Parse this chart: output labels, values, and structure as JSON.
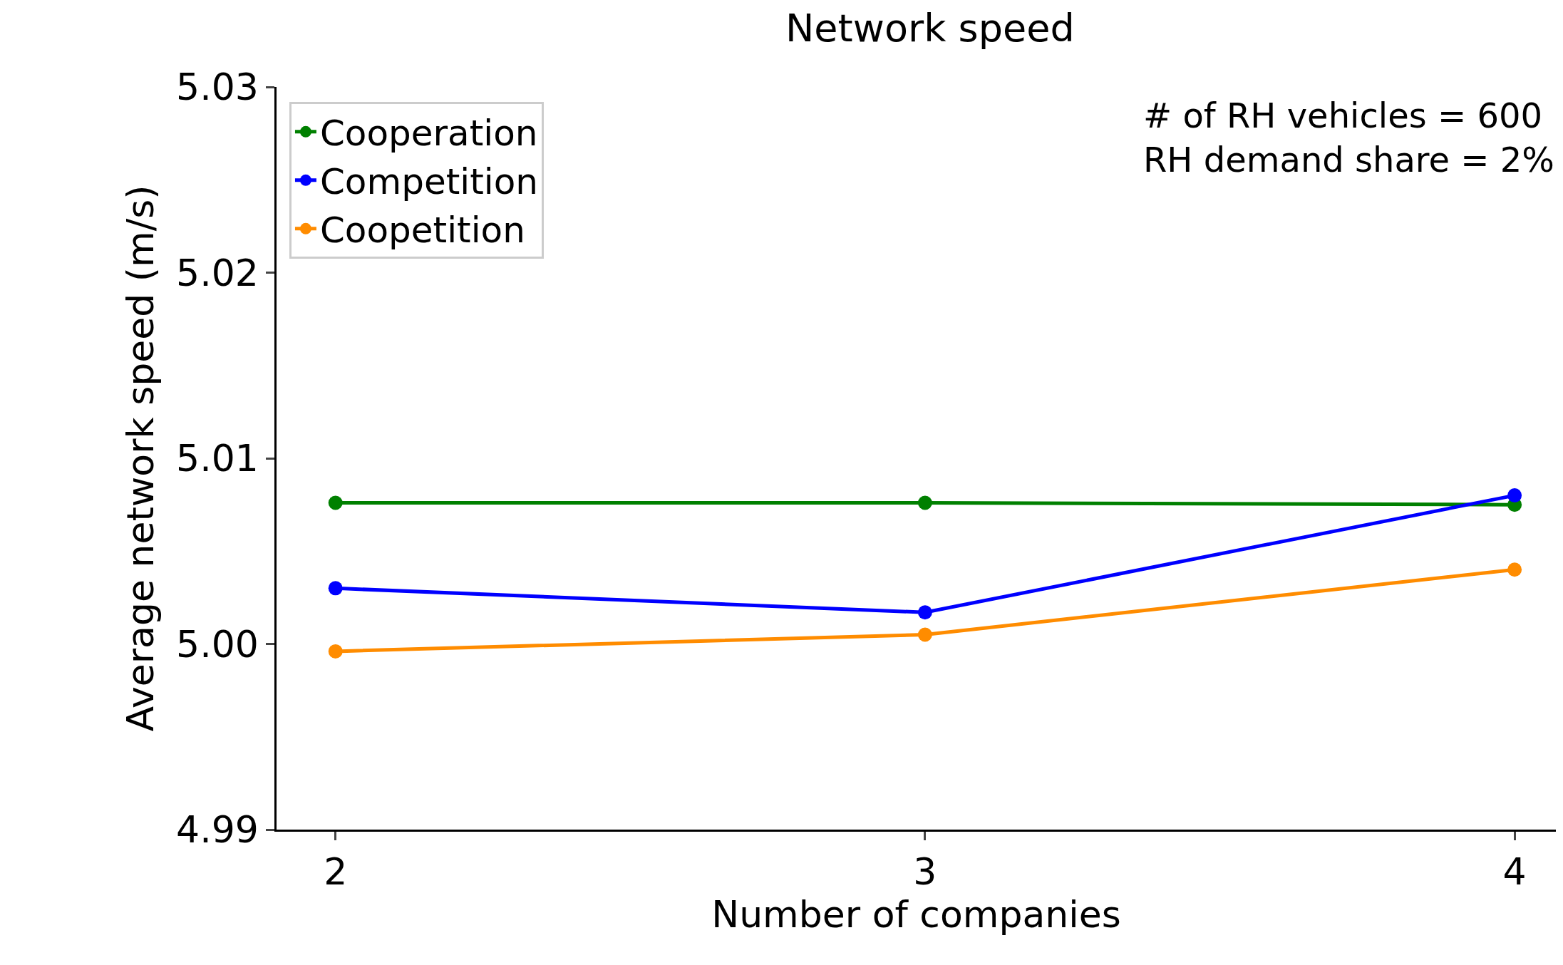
{
  "chart_data": {
    "type": "line",
    "title": "Network speed",
    "xlabel": "Number of companies",
    "ylabel": "Average network speed (m/s)",
    "x": [
      2,
      3,
      4
    ],
    "series": [
      {
        "name": "Cooperation",
        "color": "#008000",
        "values": [
          5.0076,
          5.0076,
          5.0075
        ]
      },
      {
        "name": "Competition",
        "color": "#0000ff",
        "values": [
          5.003,
          5.0017,
          5.008
        ]
      },
      {
        "name": "Coopetition",
        "color": "#ff8c00",
        "values": [
          4.9996,
          5.0005,
          5.004
        ]
      }
    ],
    "xlim": [
      1.9,
      4.07
    ],
    "ylim": [
      4.99,
      5.03
    ],
    "xticks": [
      2,
      3,
      4
    ],
    "yticks": [
      4.99,
      {
        "value": 5,
        "label": "5.00"
      },
      5.01,
      5.02,
      5.03
    ],
    "annotations": [
      "# of RH vehicles = 600\nRH demand share = 2%"
    ],
    "legend": "top left",
    "marker": "circle",
    "line_style": "solid"
  }
}
